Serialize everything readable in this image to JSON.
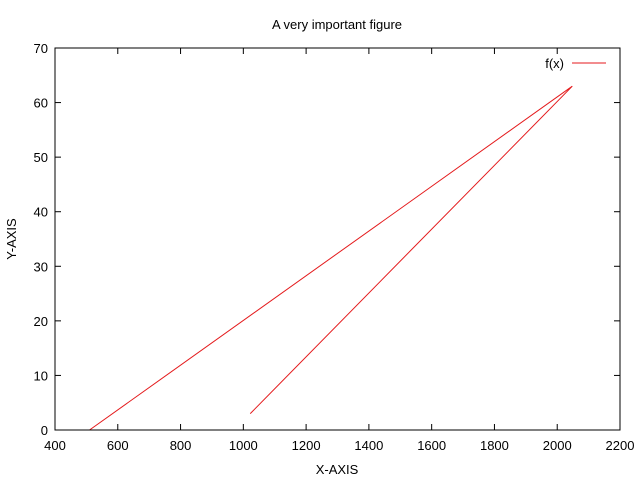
{
  "chart_data": {
    "type": "line",
    "title": "A very important figure",
    "xlabel": "X-AXIS",
    "ylabel": "Y-AXIS",
    "xlim": [
      400,
      2200
    ],
    "ylim": [
      0,
      70
    ],
    "xticks": [
      400,
      600,
      800,
      1000,
      1200,
      1400,
      1600,
      1800,
      2000,
      2200
    ],
    "yticks": [
      0,
      10,
      20,
      30,
      40,
      50,
      60,
      70
    ],
    "legend_position": "top-right",
    "series": [
      {
        "name": "f(x)",
        "color": "#e41a1c",
        "x": [
          510,
          2048,
          1022
        ],
        "y": [
          0,
          63,
          3
        ]
      }
    ]
  }
}
